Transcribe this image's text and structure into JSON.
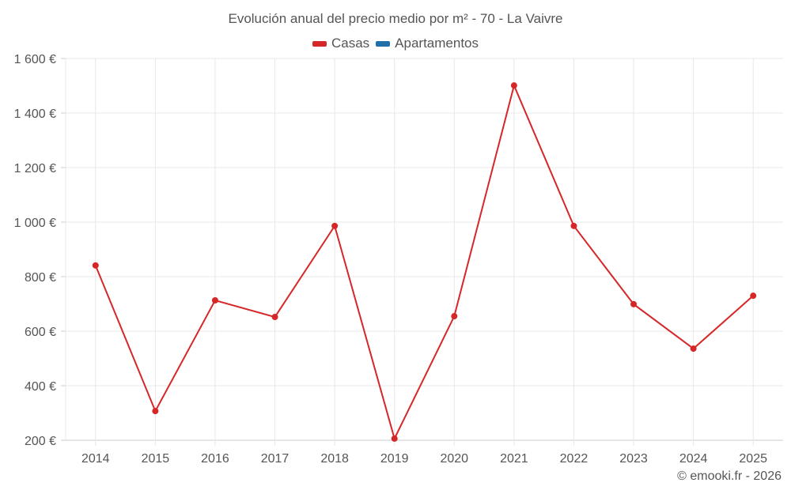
{
  "title": "Evolución anual del precio medio por m² - 70 - La Vaivre",
  "legend": [
    {
      "label": "Casas",
      "color": "#d62728"
    },
    {
      "label": "Apartamentos",
      "color": "#1f6fa8"
    }
  ],
  "credit": "© emooki.fr - 2026",
  "chart_data": {
    "type": "line",
    "title": "Evolución anual del precio medio por m² - 70 - La Vaivre",
    "xlabel": "",
    "ylabel": "",
    "categories": [
      "2014",
      "2015",
      "2016",
      "2017",
      "2018",
      "2019",
      "2020",
      "2021",
      "2022",
      "2023",
      "2024",
      "2025"
    ],
    "series": [
      {
        "name": "Casas",
        "color": "#d62728",
        "values": [
          841,
          307,
          713,
          652,
          986,
          206,
          655,
          1501,
          986,
          699,
          536,
          730
        ]
      },
      {
        "name": "Apartamentos",
        "color": "#1f6fa8",
        "values": []
      }
    ],
    "yticks": [
      200,
      400,
      600,
      800,
      1000,
      1200,
      1400,
      1600
    ],
    "ytick_labels": [
      "200 €",
      "400 €",
      "600 €",
      "800 €",
      "1 000 €",
      "1 200 €",
      "1 400 €",
      "1 600 €"
    ],
    "ylim": [
      200,
      1600
    ],
    "grid": true,
    "legend_position": "top"
  }
}
